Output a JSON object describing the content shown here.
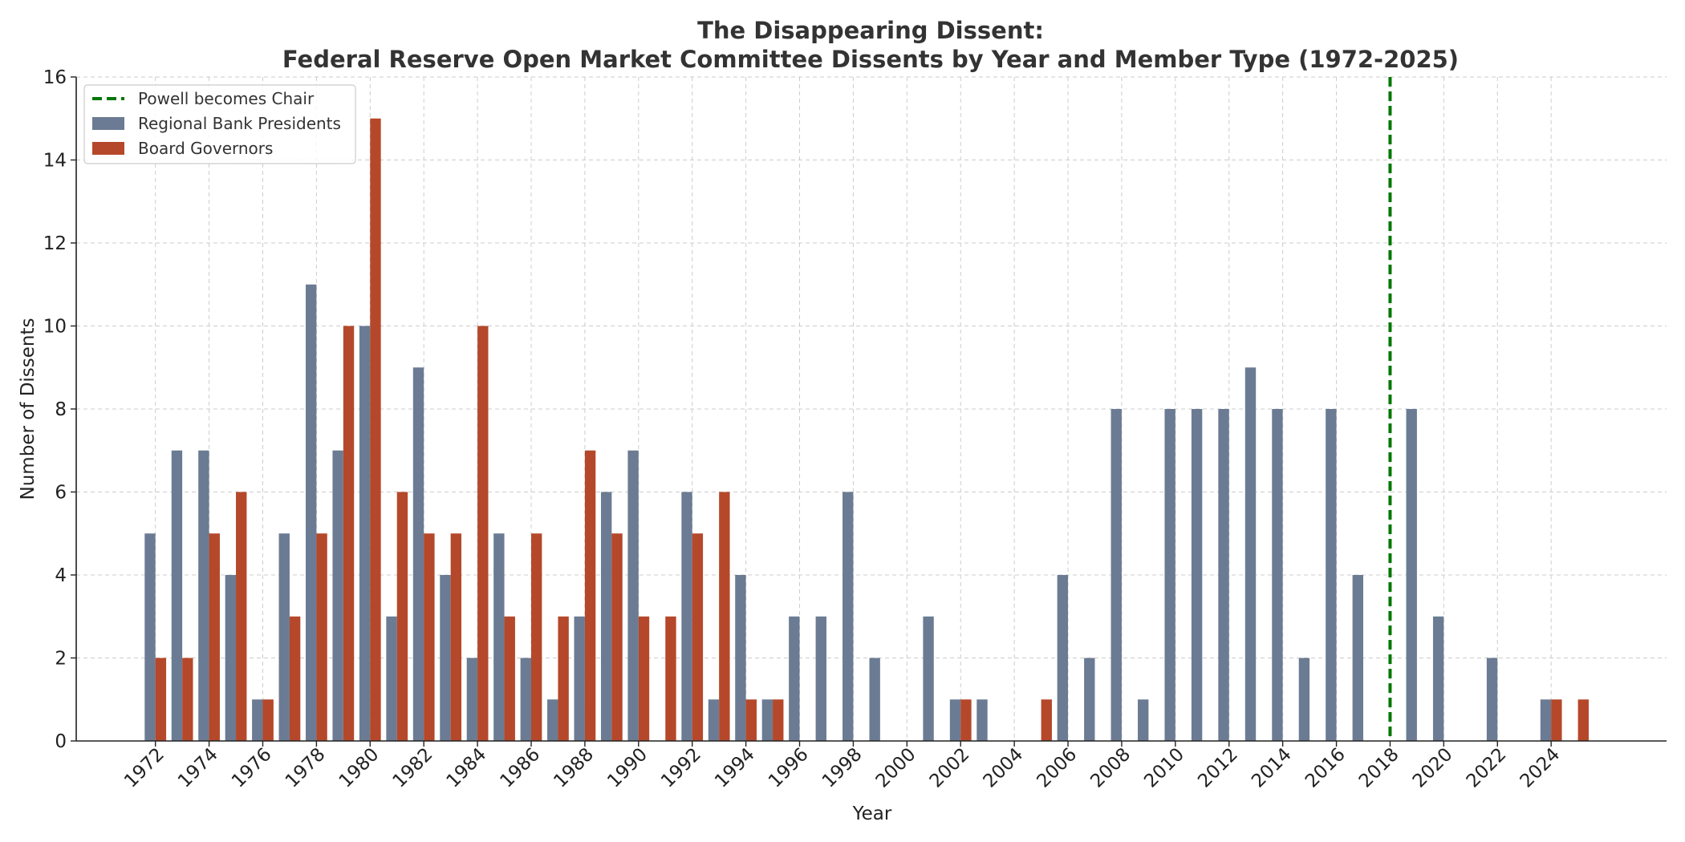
{
  "chart_data": {
    "type": "bar",
    "title_line1": "The Disappearing Dissent:",
    "title_line2": "Federal Reserve Open Market Committee Dissents by Year and Member Type (1972-2025)",
    "xlabel": "Year",
    "ylabel": "Number of Dissents",
    "ylim": [
      0,
      16
    ],
    "yticks": [
      0,
      2,
      4,
      6,
      8,
      10,
      12,
      14,
      16
    ],
    "xticks": [
      1972,
      1974,
      1976,
      1978,
      1980,
      1982,
      1984,
      1986,
      1988,
      1990,
      1992,
      1994,
      1996,
      1998,
      2000,
      2002,
      2004,
      2006,
      2008,
      2010,
      2012,
      2014,
      2016,
      2018,
      2020,
      2022,
      2024
    ],
    "x": [
      1972,
      1973,
      1974,
      1975,
      1976,
      1977,
      1978,
      1979,
      1980,
      1981,
      1982,
      1983,
      1984,
      1985,
      1986,
      1987,
      1988,
      1989,
      1990,
      1991,
      1992,
      1993,
      1994,
      1995,
      1996,
      1997,
      1998,
      1999,
      2000,
      2001,
      2002,
      2003,
      2004,
      2005,
      2006,
      2007,
      2008,
      2009,
      2010,
      2011,
      2012,
      2013,
      2014,
      2015,
      2016,
      2017,
      2018,
      2019,
      2020,
      2021,
      2022,
      2023,
      2024,
      2025
    ],
    "series": [
      {
        "name": "Regional Bank Presidents",
        "color": "#6b7b93",
        "values": [
          5,
          7,
          7,
          4,
          1,
          5,
          11,
          7,
          10,
          3,
          9,
          4,
          2,
          5,
          2,
          1,
          3,
          6,
          7,
          0,
          6,
          1,
          4,
          1,
          3,
          3,
          6,
          2,
          0,
          3,
          1,
          1,
          0,
          0,
          4,
          2,
          8,
          1,
          8,
          8,
          8,
          9,
          8,
          2,
          8,
          4,
          0,
          8,
          3,
          0,
          2,
          0,
          1,
          0
        ]
      },
      {
        "name": "Board Governors",
        "color": "#b5482a",
        "values": [
          2,
          2,
          5,
          6,
          1,
          3,
          5,
          10,
          15,
          6,
          5,
          5,
          10,
          3,
          5,
          3,
          7,
          5,
          3,
          3,
          5,
          6,
          1,
          1,
          0,
          0,
          0,
          0,
          0,
          0,
          1,
          0,
          0,
          1,
          0,
          0,
          0,
          0,
          0,
          0,
          0,
          0,
          0,
          0,
          0,
          0,
          0,
          0,
          0,
          0,
          0,
          0,
          1,
          1
        ]
      }
    ],
    "annotations": [
      {
        "type": "vline",
        "x": 2018,
        "label": "Powell becomes Chair",
        "color": "#007700",
        "style": "dashed"
      }
    ],
    "legend_position": "top-left",
    "grid": true
  }
}
